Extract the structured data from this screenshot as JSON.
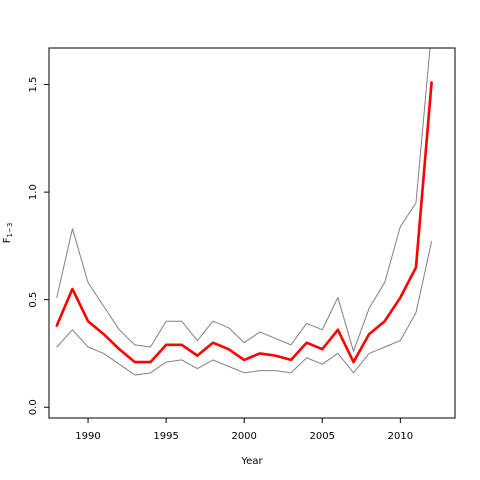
{
  "chart_data": {
    "type": "line",
    "title": "",
    "xlabel": "Year",
    "ylabel": "F",
    "ylabel_subscript": "1−3",
    "x": [
      1988,
      1989,
      1990,
      1991,
      1992,
      1993,
      1994,
      1995,
      1996,
      1997,
      1998,
      1999,
      2000,
      2001,
      2002,
      2003,
      2004,
      2005,
      2006,
      2007,
      2008,
      2009,
      2010,
      2011,
      2012
    ],
    "xlim": [
      1987.5,
      2013.5
    ],
    "ylim": [
      -0.05,
      1.67
    ],
    "xticks": [
      1990,
      1995,
      2000,
      2005,
      2010
    ],
    "yticks": [
      0.0,
      0.5,
      1.0,
      1.5
    ],
    "xtick_labels": [
      "1990",
      "1995",
      "2000",
      "2005",
      "2010"
    ],
    "ytick_labels": [
      "0.0",
      "0.5",
      "1.0",
      "1.5"
    ],
    "grid": false,
    "series": [
      {
        "role": "upper",
        "color": "#808080",
        "width": 1,
        "values": [
          0.51,
          0.83,
          0.58,
          0.47,
          0.36,
          0.29,
          0.28,
          0.4,
          0.4,
          0.31,
          0.4,
          0.37,
          0.3,
          0.35,
          0.32,
          0.29,
          0.39,
          0.36,
          0.51,
          0.26,
          0.46,
          0.58,
          0.84,
          0.95,
          1.75
        ]
      },
      {
        "role": "estimate",
        "color": "#ff0000",
        "width": 2.6,
        "values": [
          0.38,
          0.55,
          0.4,
          0.34,
          0.27,
          0.21,
          0.21,
          0.29,
          0.29,
          0.24,
          0.3,
          0.27,
          0.22,
          0.25,
          0.24,
          0.22,
          0.3,
          0.27,
          0.36,
          0.21,
          0.34,
          0.4,
          0.51,
          0.65,
          1.51
        ]
      },
      {
        "role": "lower",
        "color": "#808080",
        "width": 1,
        "values": [
          0.28,
          0.36,
          0.28,
          0.25,
          0.2,
          0.15,
          0.16,
          0.21,
          0.22,
          0.18,
          0.22,
          0.19,
          0.16,
          0.17,
          0.17,
          0.16,
          0.23,
          0.2,
          0.25,
          0.16,
          0.25,
          0.28,
          0.31,
          0.44,
          0.77
        ]
      }
    ]
  }
}
